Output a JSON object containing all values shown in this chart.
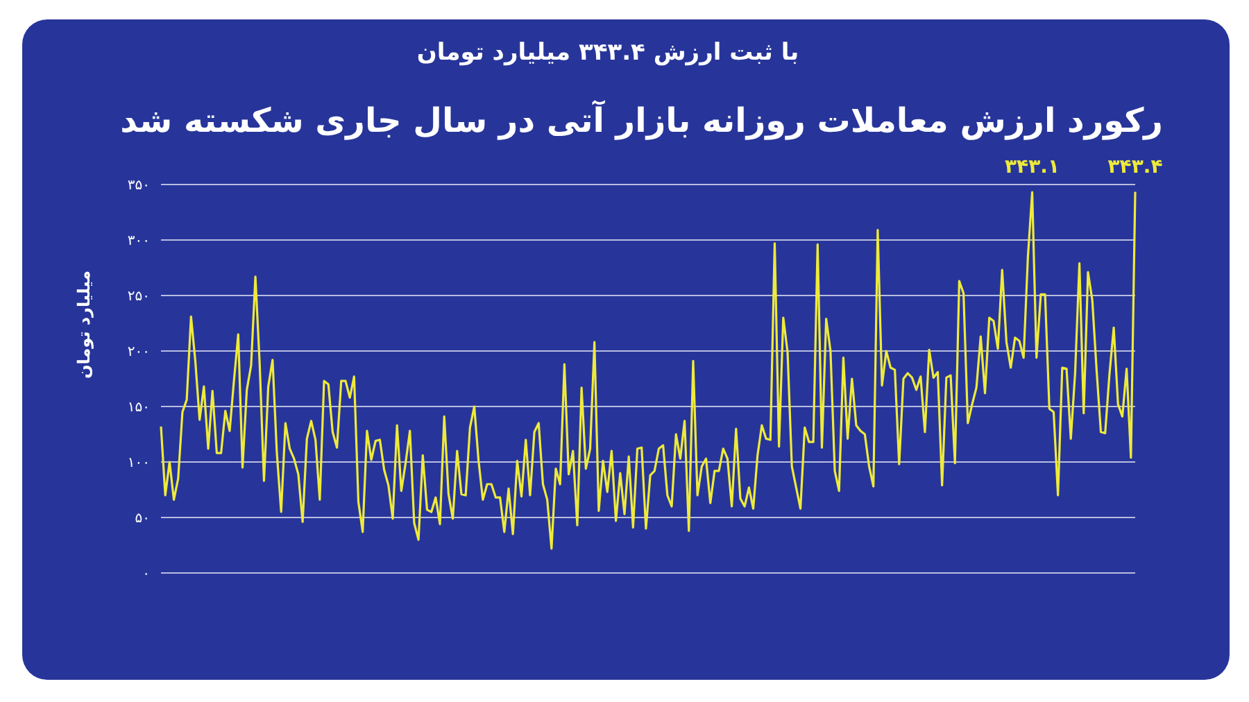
{
  "chart_data": {
    "type": "line",
    "title": "رکورد ارزش معاملات روزانه بازار آتی در سال جاری شکسته شد",
    "subtitle": "با ثبت ارزش ۳۴۳.۴ میلیارد تومان",
    "ylabel": "میلیارد تومان",
    "categories": [
      null,
      null,
      null,
      null,
      null,
      null,
      null,
      null,
      null,
      null,
      null,
      null,
      null,
      null,
      null,
      null,
      null,
      null,
      null,
      null,
      null,
      null,
      null,
      null,
      null,
      null,
      null,
      null,
      null,
      null,
      null,
      null,
      null,
      null,
      null,
      null,
      null,
      null,
      null,
      null,
      null,
      null,
      null,
      null,
      null,
      null,
      null,
      null,
      null,
      null,
      null,
      null,
      null,
      null,
      null,
      null,
      null,
      null,
      null,
      null,
      null,
      null,
      null,
      null,
      null,
      null,
      null,
      null,
      null,
      null,
      null,
      null,
      null,
      null,
      null,
      null,
      null,
      null,
      null,
      null,
      null,
      null,
      null,
      null,
      null,
      null,
      null,
      null,
      null,
      null,
      null,
      null,
      null,
      null,
      null,
      null,
      null,
      null,
      null,
      null,
      null,
      null,
      null,
      null,
      null,
      null,
      null,
      null,
      null,
      null,
      null,
      null,
      null,
      null,
      null,
      null,
      null,
      null,
      null,
      null,
      null,
      null,
      null,
      null,
      null,
      null,
      null,
      null,
      null,
      null,
      null,
      null,
      null,
      null,
      null,
      null,
      null,
      null,
      null,
      null,
      null,
      null,
      null,
      null,
      null,
      null,
      null,
      null,
      null,
      null,
      null,
      null,
      null,
      null,
      null,
      null,
      null,
      null,
      null,
      null,
      null,
      null,
      null,
      null,
      null,
      null,
      null,
      null,
      null,
      null,
      null,
      null,
      null,
      null,
      null,
      null,
      null,
      null,
      null,
      null,
      null,
      null,
      null,
      null,
      null,
      null,
      null,
      null,
      null,
      null,
      null,
      null,
      null,
      null,
      null,
      null,
      null,
      null,
      null,
      null,
      null,
      null,
      null,
      null,
      null,
      null,
      null,
      null,
      null,
      null,
      null,
      null,
      null,
      null,
      null,
      null,
      null,
      null,
      null,
      null,
      null,
      null,
      null,
      null,
      null,
      null,
      null,
      null
    ],
    "series": [
      {
        "color": "#eeea3a",
        "values": [
          132,
          70,
          100,
          66,
          85,
          145,
          156,
          231,
          191,
          138,
          168,
          112,
          164,
          108,
          108,
          146,
          128,
          173,
          215,
          95,
          165,
          187,
          267,
          188,
          83,
          168,
          192,
          108,
          55,
          135,
          112,
          103,
          89,
          46,
          121,
          137,
          120,
          66,
          173,
          170,
          127,
          113,
          173,
          173,
          158,
          177,
          64,
          37,
          128,
          102,
          119,
          120,
          93,
          79,
          49,
          133,
          74,
          99,
          128,
          45,
          30,
          106,
          57,
          55,
          68,
          44,
          141,
          71,
          49,
          110,
          71,
          70,
          131,
          150,
          101,
          66,
          80,
          80,
          68,
          68,
          37,
          76,
          35,
          101,
          69,
          120,
          70,
          127,
          135,
          80,
          66,
          22,
          94,
          80,
          188,
          89,
          110,
          43,
          167,
          94,
          112,
          208,
          56,
          101,
          73,
          110,
          47,
          90,
          53,
          105,
          41,
          112,
          113,
          40,
          88,
          92,
          112,
          115,
          70,
          60,
          125,
          103,
          137,
          38,
          191,
          70,
          96,
          103,
          63,
          92,
          92,
          112,
          103,
          60,
          130,
          67,
          60,
          77,
          58,
          106,
          133,
          121,
          120,
          297,
          114,
          230,
          199,
          96,
          77,
          58,
          131,
          118,
          118,
          296,
          113,
          229,
          200,
          92,
          74,
          194,
          121,
          175,
          133,
          128,
          125,
          96,
          78,
          309,
          169,
          200,
          185,
          183,
          98,
          175,
          180,
          176,
          165,
          177,
          127,
          201,
          176,
          181,
          79,
          176,
          178,
          99,
          263,
          252,
          135,
          152,
          167,
          213,
          162,
          230,
          227,
          202,
          273,
          208,
          185,
          212,
          209,
          194,
          285,
          343.1,
          194,
          251,
          251,
          148,
          145,
          70,
          185,
          184,
          121,
          180,
          279,
          144,
          271,
          246,
          183,
          127,
          126,
          179,
          221,
          152,
          141,
          184,
          104,
          343.4
        ]
      }
    ],
    "ylim": [
      0,
      350
    ],
    "yticks": [
      {
        "value": 0,
        "label": "۰"
      },
      {
        "value": 50,
        "label": "۵۰"
      },
      {
        "value": 100,
        "label": "۱۰۰"
      },
      {
        "value": 150,
        "label": "۱۵۰"
      },
      {
        "value": 200,
        "label": "۲۰۰"
      },
      {
        "value": 250,
        "label": "۲۵۰"
      },
      {
        "value": 300,
        "label": "۳۰۰"
      },
      {
        "value": 350,
        "label": "۳۵۰"
      }
    ],
    "annotations": [
      {
        "text": "۳۴۳.۱",
        "y": 343.1
      },
      {
        "text": "۳۴۳.۴",
        "y": 343.4
      }
    ],
    "grid": "y",
    "legend": false,
    "marker": "none",
    "line_style": "solid"
  }
}
